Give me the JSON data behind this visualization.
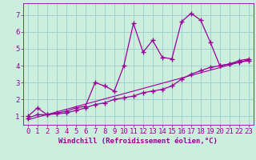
{
  "xlabel": "Windchill (Refroidissement éolien,°C)",
  "bg_color": "#cceedd",
  "grid_color": "#99cccc",
  "line_color": "#990099",
  "series1_x": [
    0,
    1,
    2,
    3,
    4,
    5,
    6,
    7,
    8,
    9,
    10,
    11,
    12,
    13,
    14,
    15,
    16,
    17,
    18,
    19,
    20,
    21,
    22,
    23
  ],
  "series1_y": [
    1.0,
    1.5,
    1.1,
    1.2,
    1.3,
    1.5,
    1.6,
    3.0,
    2.8,
    2.5,
    4.0,
    6.5,
    4.8,
    5.5,
    4.5,
    4.4,
    6.6,
    7.1,
    6.7,
    5.4,
    4.0,
    4.1,
    4.3,
    4.4
  ],
  "series2_x": [
    0,
    1,
    2,
    3,
    4,
    5,
    6,
    7,
    8,
    9,
    10,
    11,
    12,
    13,
    14,
    15,
    16,
    17,
    18,
    19,
    20,
    21,
    22,
    23
  ],
  "series2_y": [
    0.9,
    1.1,
    1.1,
    1.15,
    1.2,
    1.35,
    1.5,
    1.7,
    1.8,
    2.0,
    2.1,
    2.2,
    2.4,
    2.5,
    2.6,
    2.8,
    3.2,
    3.5,
    3.7,
    3.9,
    4.0,
    4.1,
    4.2,
    4.3
  ],
  "trend_x": [
    0,
    23
  ],
  "trend_y": [
    0.8,
    4.35
  ],
  "ylim": [
    0.5,
    7.7
  ],
  "xlim": [
    -0.5,
    23.5
  ],
  "xticks": [
    0,
    1,
    2,
    3,
    4,
    5,
    6,
    7,
    8,
    9,
    10,
    11,
    12,
    13,
    14,
    15,
    16,
    17,
    18,
    19,
    20,
    21,
    22,
    23
  ],
  "yticks": [
    1,
    2,
    3,
    4,
    5,
    6,
    7
  ],
  "marker": "+",
  "markersize": 5,
  "linewidth": 0.9,
  "font_size": 6.5
}
